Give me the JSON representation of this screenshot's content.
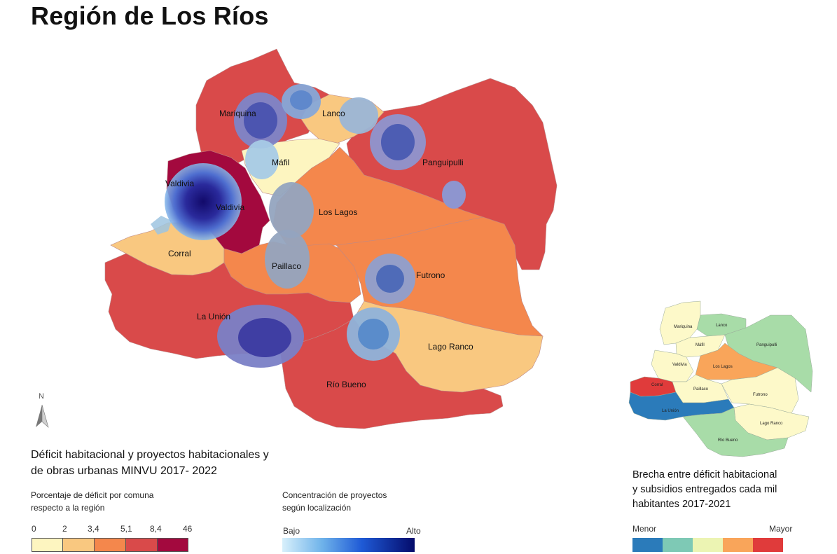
{
  "title": "Región de Los Ríos",
  "main_map": {
    "communes": [
      {
        "name": "Mariquina",
        "color": "#d94a4a"
      },
      {
        "name": "Lanco",
        "color": "#f9c880"
      },
      {
        "name": "Panguipulli",
        "color": "#d94a4a"
      },
      {
        "name": "Máfil",
        "color": "#fdf5c0"
      },
      {
        "name": "Valdivia",
        "color": "#a3093e"
      },
      {
        "name": "Los Lagos",
        "color": "#f4874c"
      },
      {
        "name": "Corral",
        "color": "#f9c880"
      },
      {
        "name": "Paillaco",
        "color": "#f4874c"
      },
      {
        "name": "Futrono",
        "color": "#f4874c"
      },
      {
        "name": "La Unión",
        "color": "#d94a4a"
      },
      {
        "name": "Lago Ranco",
        "color": "#f9c880"
      },
      {
        "name": "Río Bueno",
        "color": "#d94a4a"
      }
    ],
    "valdivia_secondary_label": "Valdivia",
    "north_label": "N"
  },
  "legend": {
    "title_line1": "Déficit habitacional y proyectos habitacionales y",
    "title_line2": "de obras urbanas MINVU 2017- 2022",
    "deficit_title_line1": "Porcentaje de déficit por comuna",
    "deficit_title_line2": "respecto a la región",
    "deficit_ticks": [
      "0",
      "2",
      "3,4",
      "5,1",
      "8,4",
      "46"
    ],
    "deficit_colors": [
      "#fdf5c0",
      "#f9c880",
      "#f4874c",
      "#d94a4a",
      "#a3093e"
    ],
    "concentration_title_line1": "Concentración de proyectos",
    "concentration_title_line2": "según localización",
    "concentration_low": "Bajo",
    "concentration_high": "Alto"
  },
  "inset": {
    "title_line1": "Brecha entre déficit habitacional",
    "title_line2": "y subsidios entregados cada mil",
    "title_line3": "habitantes 2017-2021",
    "low_label": "Menor",
    "high_label": "Mayor",
    "colors": [
      "#2b7bba",
      "#7ec9b5",
      "#ecf4b3",
      "#f9a55a",
      "#e03b3b"
    ],
    "communes": [
      {
        "name": "Mariquina",
        "color": "#fdf9c9"
      },
      {
        "name": "Lanco",
        "color": "#a8dca8"
      },
      {
        "name": "Panguipulli",
        "color": "#a8dca8"
      },
      {
        "name": "Máfil",
        "color": "#fdf9c9"
      },
      {
        "name": "Los Lagos",
        "color": "#f9a55a"
      },
      {
        "name": "Valdivia",
        "color": "#fdf9c9"
      },
      {
        "name": "Corral",
        "color": "#e03b3b"
      },
      {
        "name": "Paillaco",
        "color": "#fdf9c9"
      },
      {
        "name": "Futrono",
        "color": "#fdf9c9"
      },
      {
        "name": "La Unión",
        "color": "#2b7bba"
      },
      {
        "name": "Lago Ranco",
        "color": "#fdf9c9"
      },
      {
        "name": "Río Bueno",
        "color": "#a8dca8"
      }
    ]
  }
}
